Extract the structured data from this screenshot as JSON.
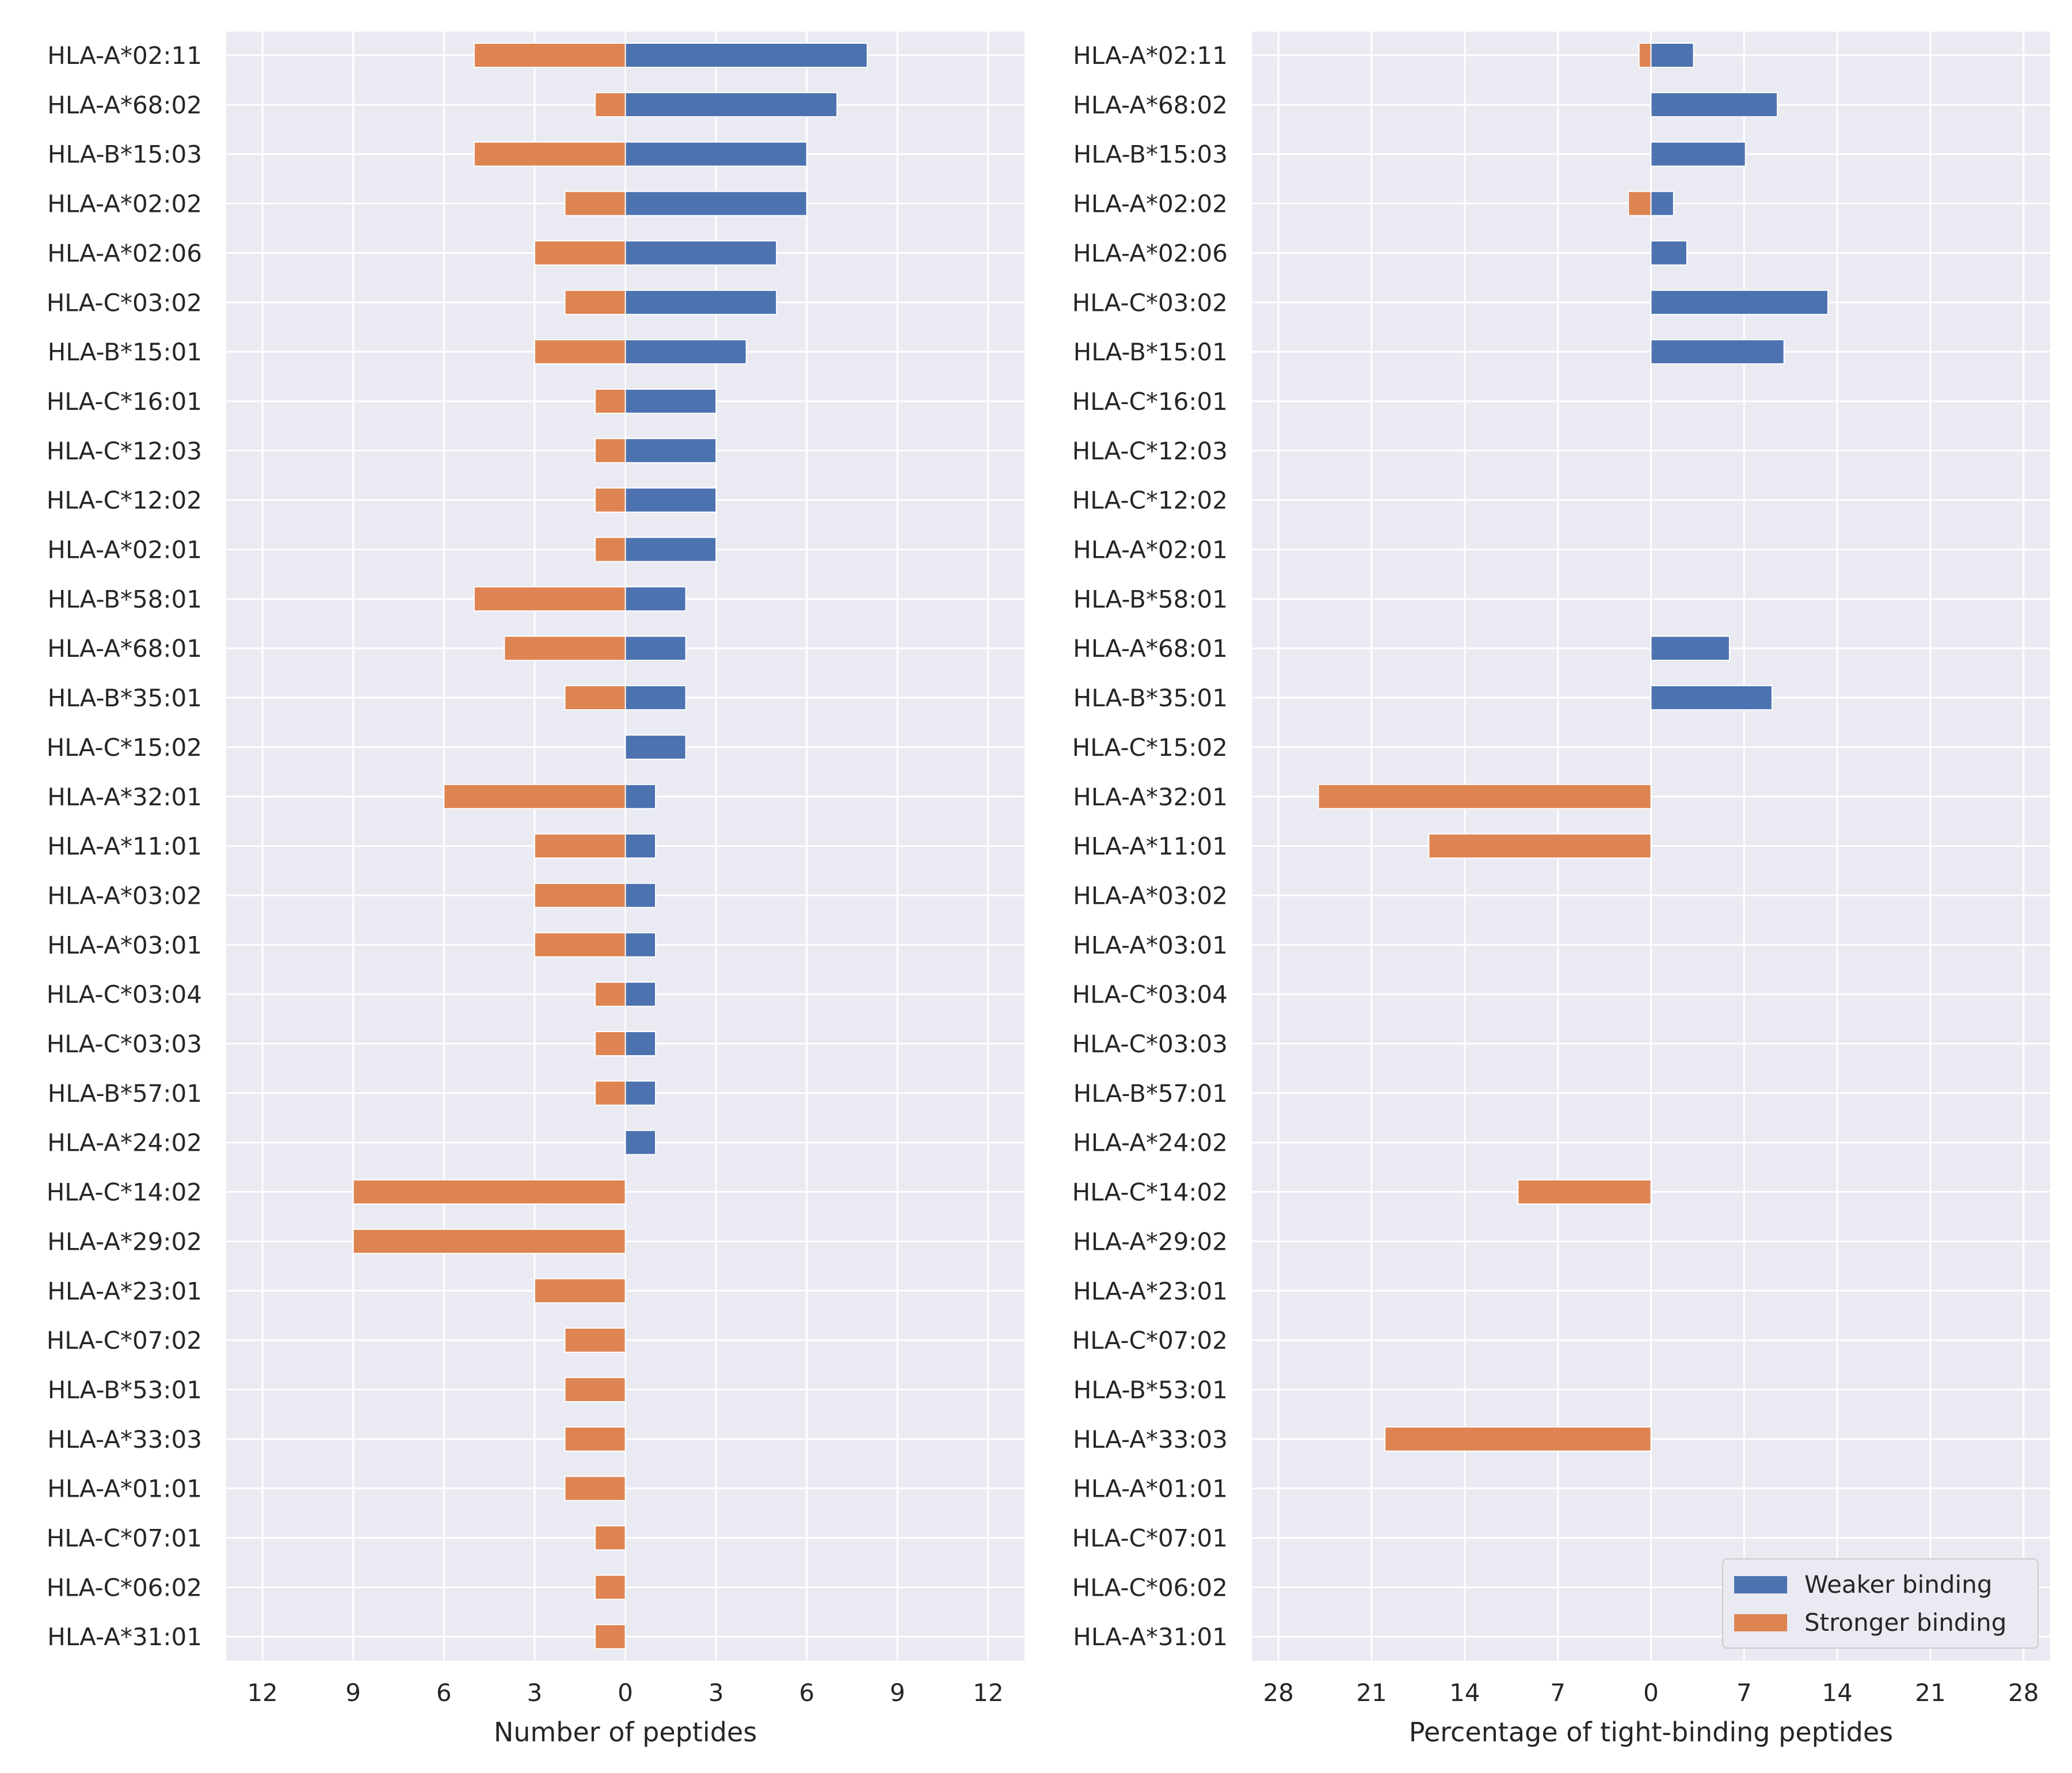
{
  "colors": {
    "weaker": "#4c72b0",
    "stronger": "#dd8452",
    "plot_bg": "#eaeaf2",
    "grid": "#ffffff",
    "text": "#262626"
  },
  "chart_data": [
    {
      "type": "bar",
      "orientation": "horizontal",
      "layout": "diverging",
      "xlabel": "Number of peptides",
      "ylabel": "",
      "xlim": [
        -13.2,
        13.2
      ],
      "xticks": [
        -12,
        -9,
        -6,
        -3,
        0,
        3,
        6,
        9,
        12
      ],
      "xtick_labels": [
        "12",
        "9",
        "6",
        "3",
        "0",
        "3",
        "6",
        "9",
        "12"
      ],
      "grid": true,
      "categories": [
        "HLA-A*02:11",
        "HLA-A*68:02",
        "HLA-B*15:03",
        "HLA-A*02:02",
        "HLA-A*02:06",
        "HLA-C*03:02",
        "HLA-B*15:01",
        "HLA-C*16:01",
        "HLA-C*12:03",
        "HLA-C*12:02",
        "HLA-A*02:01",
        "HLA-B*58:01",
        "HLA-A*68:01",
        "HLA-B*35:01",
        "HLA-C*15:02",
        "HLA-A*32:01",
        "HLA-A*11:01",
        "HLA-A*03:02",
        "HLA-A*03:01",
        "HLA-C*03:04",
        "HLA-C*03:03",
        "HLA-B*57:01",
        "HLA-A*24:02",
        "HLA-C*14:02",
        "HLA-A*29:02",
        "HLA-A*23:01",
        "HLA-C*07:02",
        "HLA-B*53:01",
        "HLA-A*33:03",
        "HLA-A*01:01",
        "HLA-C*07:01",
        "HLA-C*06:02",
        "HLA-A*31:01"
      ],
      "series": [
        {
          "name": "Weaker binding",
          "direction": "right",
          "values": [
            8,
            7,
            6,
            6,
            5,
            5,
            4,
            3,
            3,
            3,
            3,
            2,
            2,
            2,
            2,
            1,
            1,
            1,
            1,
            1,
            1,
            1,
            1,
            0,
            0,
            0,
            0,
            0,
            0,
            0,
            0,
            0,
            0
          ]
        },
        {
          "name": "Stronger binding",
          "direction": "left",
          "values": [
            5,
            1,
            5,
            2,
            3,
            2,
            3,
            1,
            1,
            1,
            1,
            5,
            4,
            2,
            0,
            6,
            3,
            3,
            3,
            1,
            1,
            1,
            0,
            9,
            9,
            3,
            2,
            2,
            2,
            2,
            1,
            1,
            1
          ]
        }
      ]
    },
    {
      "type": "bar",
      "orientation": "horizontal",
      "layout": "diverging",
      "xlabel": "Percentage of tight-binding peptides",
      "ylabel": "",
      "xlim": [
        -30,
        30
      ],
      "xticks": [
        -28,
        -21,
        -14,
        -7,
        0,
        7,
        14,
        21,
        28
      ],
      "xtick_labels": [
        "28",
        "21",
        "14",
        "7",
        "0",
        "7",
        "14",
        "21",
        "28"
      ],
      "grid": true,
      "legend": {
        "position": "bottom-right",
        "entries": [
          "Weaker binding",
          "Stronger binding"
        ]
      },
      "categories": [
        "HLA-A*02:11",
        "HLA-A*68:02",
        "HLA-B*15:03",
        "HLA-A*02:02",
        "HLA-A*02:06",
        "HLA-C*03:02",
        "HLA-B*15:01",
        "HLA-C*16:01",
        "HLA-C*12:03",
        "HLA-C*12:02",
        "HLA-A*02:01",
        "HLA-B*58:01",
        "HLA-A*68:01",
        "HLA-B*35:01",
        "HLA-C*15:02",
        "HLA-A*32:01",
        "HLA-A*11:01",
        "HLA-A*03:02",
        "HLA-A*03:01",
        "HLA-C*03:04",
        "HLA-C*03:03",
        "HLA-B*57:01",
        "HLA-A*24:02",
        "HLA-C*14:02",
        "HLA-A*29:02",
        "HLA-A*23:01",
        "HLA-C*07:02",
        "HLA-B*53:01",
        "HLA-A*33:03",
        "HLA-A*01:01",
        "HLA-C*07:01",
        "HLA-C*06:02",
        "HLA-A*31:01"
      ],
      "series": [
        {
          "name": "Weaker binding",
          "direction": "right",
          "values": [
            3.2,
            9.5,
            7.1,
            1.7,
            2.7,
            13.3,
            10.0,
            0,
            0,
            0,
            0,
            0,
            5.9,
            9.1,
            0,
            0,
            0,
            0,
            0,
            0,
            0,
            0,
            0,
            0,
            0,
            0,
            0,
            0,
            0,
            0,
            0,
            0,
            0
          ]
        },
        {
          "name": "Stronger binding",
          "direction": "left",
          "values": [
            0.9,
            0,
            0,
            1.7,
            0,
            0,
            0,
            0,
            0,
            0,
            0,
            0,
            0,
            0,
            0,
            25.0,
            16.7,
            0,
            0,
            0,
            0,
            0,
            0,
            10.0,
            0,
            0,
            0,
            0,
            20.0,
            0,
            0,
            0,
            0
          ]
        }
      ]
    }
  ]
}
